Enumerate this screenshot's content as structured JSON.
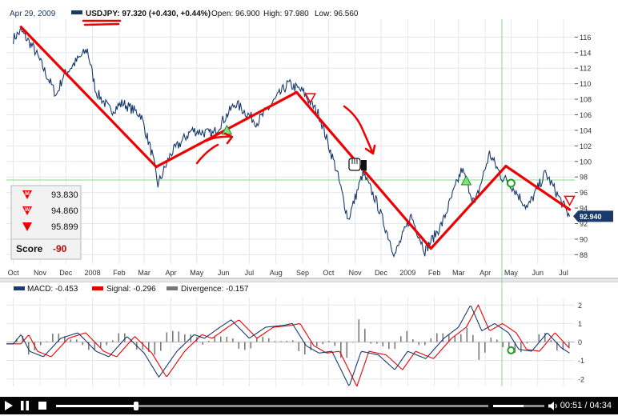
{
  "header": {
    "date": "Apr 29, 2009",
    "symbol_label": "USDJPY: 97.320 (+0.430, +0.44%)",
    "open_label": "Open: 96.900",
    "high_label": "High: 97.980",
    "low_label": "Low: 96.560"
  },
  "chart_data": [
    {
      "type": "line",
      "title": "",
      "series": [
        {
          "name": "USDJPY"
        }
      ],
      "x_ticks": [
        "Oct",
        "Nov",
        "Dec",
        "2008",
        "Feb",
        "Mar",
        "Apr",
        "May",
        "Jun",
        "Jul",
        "Aug",
        "Sep",
        "Oct",
        "Nov",
        "Dec",
        "2009",
        "Feb",
        "Mar",
        "Apr",
        "May",
        "Jun",
        "Jul"
      ],
      "y_ticks": [
        88,
        90,
        92,
        94,
        96,
        98,
        100,
        102,
        104,
        106,
        108,
        110,
        112,
        114,
        116
      ],
      "ylim": [
        86.8,
        118.3
      ],
      "approx_close_path": [
        [
          "2007-10-01",
          115.8
        ],
        [
          "2007-10-10",
          116.8
        ],
        [
          "2007-10-25",
          114.5
        ],
        [
          "2007-11-20",
          108.5
        ],
        [
          "2007-11-28",
          111.0
        ],
        [
          "2007-12-10",
          112.5
        ],
        [
          "2007-12-26",
          114.4
        ],
        [
          "2008-01-05",
          109.0
        ],
        [
          "2008-01-22",
          106.5
        ],
        [
          "2008-02-05",
          107.5
        ],
        [
          "2008-02-26",
          106.0
        ],
        [
          "2008-03-10",
          101.0
        ],
        [
          "2008-03-17",
          97.0
        ],
        [
          "2008-04-01",
          101.0
        ],
        [
          "2008-04-25",
          104.0
        ],
        [
          "2008-05-20",
          103.5
        ],
        [
          "2008-06-15",
          107.5
        ],
        [
          "2008-07-10",
          105.0
        ],
        [
          "2008-08-15",
          110.0
        ],
        [
          "2008-09-01",
          109.0
        ],
        [
          "2008-09-20",
          106.0
        ],
        [
          "2008-10-10",
          99.0
        ],
        [
          "2008-10-24",
          92.5
        ],
        [
          "2008-11-10",
          98.5
        ],
        [
          "2008-11-25",
          95.0
        ],
        [
          "2008-12-17",
          88.0
        ],
        [
          "2009-01-05",
          93.0
        ],
        [
          "2009-01-21",
          88.5
        ],
        [
          "2009-02-10",
          92.0
        ],
        [
          "2009-03-05",
          99.0
        ],
        [
          "2009-03-20",
          94.5
        ],
        [
          "2009-04-06",
          101.0
        ],
        [
          "2009-04-20",
          98.0
        ],
        [
          "2009-04-29",
          97.3
        ],
        [
          "2009-05-20",
          94.0
        ],
        [
          "2009-06-10",
          98.5
        ],
        [
          "2009-07-08",
          92.9
        ]
      ],
      "last_price_tag": "92.940",
      "trend_lines": [
        [
          [
            "2007-10-10",
            117.3
          ],
          [
            "2008-03-15",
            99.3
          ]
        ],
        [
          [
            "2008-03-15",
            99.3
          ],
          [
            "2008-08-25",
            108.9
          ]
        ],
        [
          [
            "2008-08-25",
            108.9
          ],
          [
            "2009-01-28",
            88.8
          ]
        ],
        [
          [
            "2009-01-28",
            88.8
          ],
          [
            "2009-04-25",
            99.4
          ]
        ],
        [
          [
            "2009-04-25",
            99.4
          ],
          [
            "2009-07-08",
            93.8
          ]
        ]
      ],
      "signals": [
        {
          "date": "2008-06-05",
          "value": 104.0,
          "kind": "buy-triangle"
        },
        {
          "date": "2008-09-10",
          "value": 108.2,
          "kind": "sell-triangle"
        },
        {
          "date": "2009-03-10",
          "value": 97.5,
          "kind": "buy-triangle"
        },
        {
          "date": "2009-05-01",
          "value": 97.2,
          "kind": "circle-marker"
        },
        {
          "date": "2009-07-08",
          "value": 95.0,
          "kind": "sell-triangle"
        }
      ],
      "score_box": {
        "rows": [
          {
            "badge": "M",
            "value": "93.830"
          },
          {
            "badge": "W",
            "value": "94.860"
          },
          {
            "badge": "",
            "value": "95.899"
          }
        ],
        "label": "Score",
        "value": "-90"
      },
      "colors": {
        "price": "#1a3a6b",
        "trend": "#ee0000",
        "signal": "#22aa22"
      }
    },
    {
      "type": "line",
      "title": "",
      "series": [
        {
          "name": "MACD: -0.453",
          "color": "#1a3a6b"
        },
        {
          "name": "Signal: -0.296",
          "color": "#ee0000"
        },
        {
          "name": "Divergence: -0.157",
          "color": "#777777"
        }
      ],
      "y_ticks": [
        -2,
        -1,
        0,
        1,
        2
      ],
      "ylim": [
        -2.4,
        2.4
      ],
      "macd_points": [
        [
          "2007-10-01",
          -0.1
        ],
        [
          "2007-10-10",
          0.4
        ],
        [
          "2007-10-20",
          -0.5
        ],
        [
          "2007-11-05",
          -0.8
        ],
        [
          "2007-11-25",
          0.2
        ],
        [
          "2007-12-15",
          0.5
        ],
        [
          "2008-01-05",
          -0.5
        ],
        [
          "2008-01-20",
          -0.8
        ],
        [
          "2008-02-10",
          0.3
        ],
        [
          "2008-03-01",
          -0.6
        ],
        [
          "2008-03-18",
          -1.9
        ],
        [
          "2008-04-08",
          -0.5
        ],
        [
          "2008-04-28",
          0.4
        ],
        [
          "2008-05-10",
          0.2
        ],
        [
          "2008-05-28",
          0.8
        ],
        [
          "2008-06-10",
          1.2
        ],
        [
          "2008-07-01",
          0.2
        ],
        [
          "2008-07-20",
          0.8
        ],
        [
          "2008-08-10",
          0.9
        ],
        [
          "2008-08-20",
          1.0
        ],
        [
          "2008-09-05",
          -0.2
        ],
        [
          "2008-09-20",
          -0.6
        ],
        [
          "2008-10-05",
          -0.5
        ],
        [
          "2008-10-25",
          -2.4
        ],
        [
          "2008-11-08",
          -0.5
        ],
        [
          "2008-11-28",
          -0.7
        ],
        [
          "2008-12-17",
          -1.5
        ],
        [
          "2009-01-01",
          -0.5
        ],
        [
          "2009-01-22",
          -0.9
        ],
        [
          "2009-02-12",
          0.2
        ],
        [
          "2009-03-01",
          0.8
        ],
        [
          "2009-03-15",
          2.0
        ],
        [
          "2009-03-28",
          0.6
        ],
        [
          "2009-04-12",
          1.0
        ],
        [
          "2009-04-28",
          0.5
        ],
        [
          "2009-05-10",
          -0.4
        ],
        [
          "2009-05-25",
          -0.5
        ],
        [
          "2009-06-12",
          0.5
        ],
        [
          "2009-06-28",
          -0.3
        ],
        [
          "2009-07-08",
          -0.6
        ]
      ],
      "signal_lag_days": 9
    }
  ],
  "player": {
    "elapsed": "00:51",
    "total": "04:34",
    "progress": 0.186,
    "volume": 0.6
  }
}
